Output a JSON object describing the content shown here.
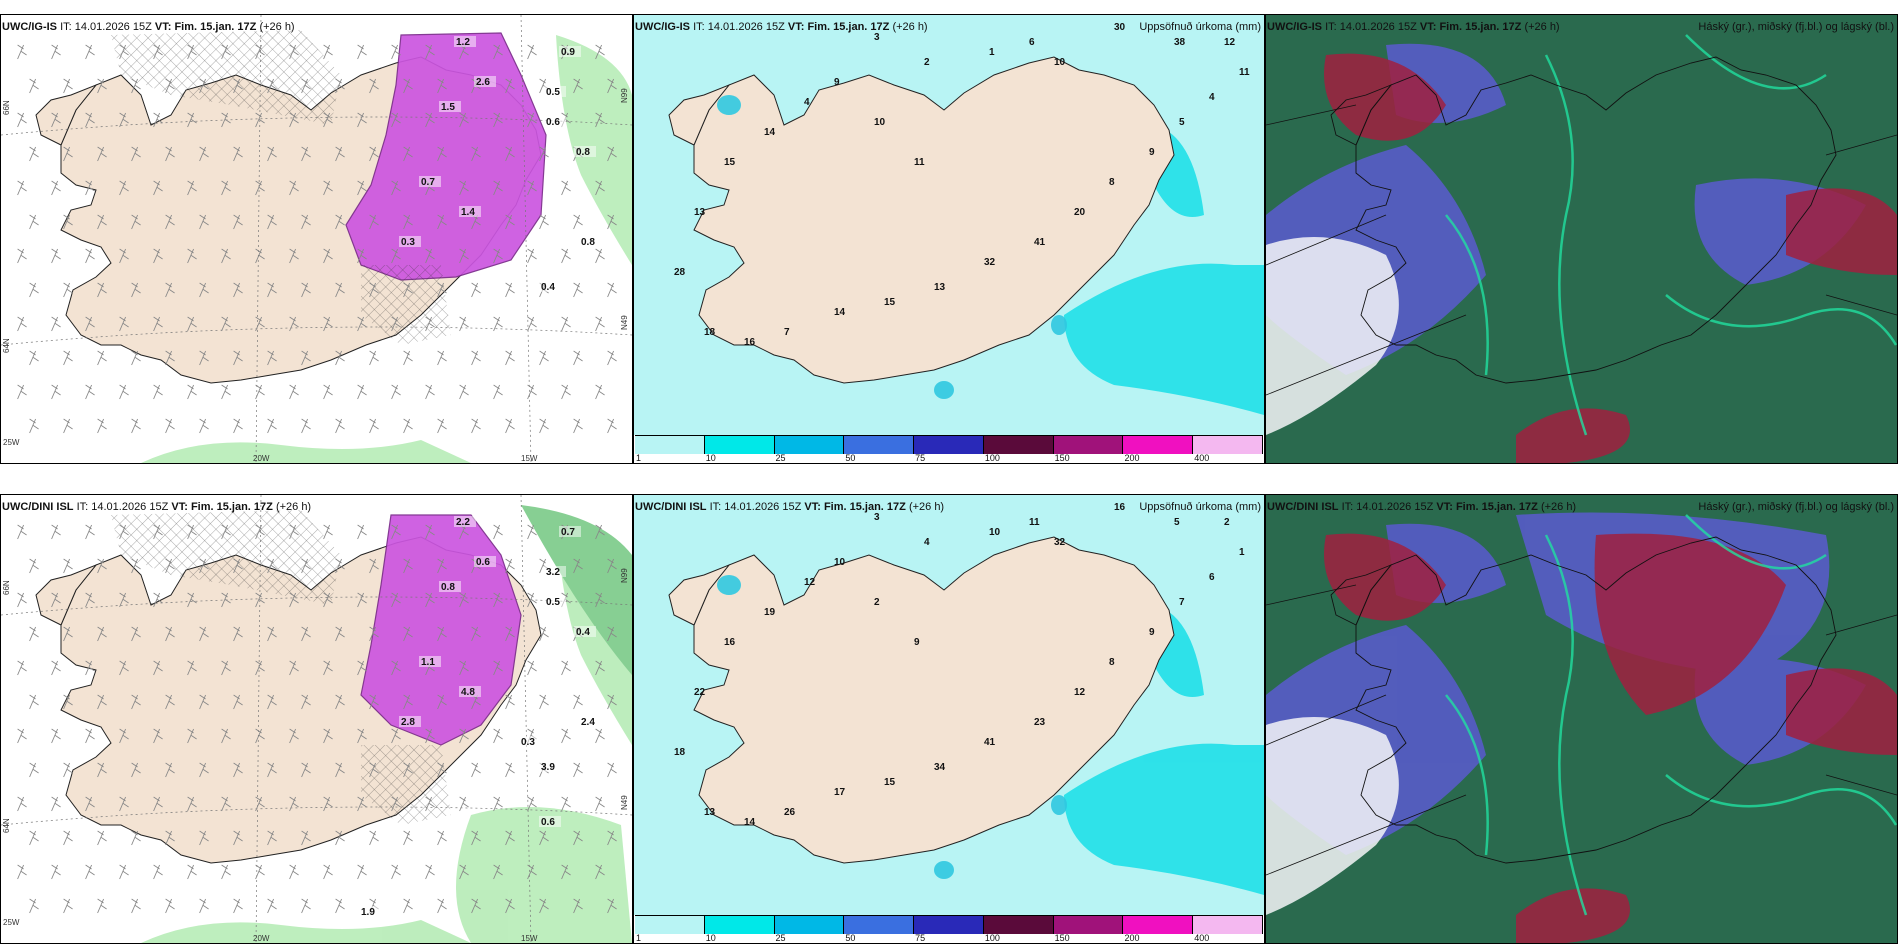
{
  "panels": [
    {
      "model": "UWC/IG-IS",
      "it_label": "IT:",
      "it_value": "14.01.2026 15Z",
      "vt_label": "VT:",
      "vt_value": "Fim. 15.jan. 17Z",
      "lead": "(+26 h)",
      "right_title": "",
      "kind": "precip-type",
      "lat_labels": [
        "66N",
        "64N",
        "N99",
        "N49"
      ],
      "lon_labels": [
        "25W",
        "20W",
        "15W"
      ],
      "value_labels": [
        "1.2",
        "0.9",
        "2.6",
        "1.5",
        "0.5",
        "0.6",
        "0.8",
        "0.7",
        "1.4",
        "0.3",
        "0.4",
        "0.8"
      ]
    },
    {
      "model": "UWC/IG-IS",
      "it_label": "IT:",
      "it_value": "14.01.2026 15Z",
      "vt_label": "VT:",
      "vt_value": "Fim. 15.jan. 17Z",
      "lead": "(+26 h)",
      "right_title": "Uppsöfnuð úrkoma (mm)",
      "kind": "accum",
      "value_labels": [
        "3",
        "2",
        "1",
        "6",
        "10",
        "30",
        "38",
        "12",
        "11",
        "4",
        "5",
        "9",
        "8",
        "20",
        "41",
        "32",
        "13",
        "15",
        "14",
        "7",
        "16",
        "18",
        "28",
        "13",
        "15",
        "14",
        "4",
        "9",
        "10",
        "11"
      ]
    },
    {
      "model": "UWC/IG-IS",
      "it_label": "IT:",
      "it_value": "14.01.2026 15Z",
      "vt_label": "VT:",
      "vt_value": "Fim. 15.jan. 17Z",
      "lead": "(+26 h)",
      "right_title": "Háský (gr.), miðský (fj.bl.) og lágský (bl.)",
      "kind": "clouds"
    },
    {
      "model": "UWC/DINI ISL",
      "it_label": "IT:",
      "it_value": "14.01.2026 15Z",
      "vt_label": "VT:",
      "vt_value": "Fim. 15.jan. 17Z",
      "lead": "(+26 h)",
      "right_title": "",
      "kind": "precip-type",
      "lat_labels": [
        "66N",
        "64N",
        "N99",
        "N49"
      ],
      "lon_labels": [
        "25W",
        "20W",
        "15W"
      ],
      "value_labels": [
        "2.2",
        "0.7",
        "0.6",
        "0.8",
        "3.2",
        "0.5",
        "0.4",
        "1.1",
        "4.8",
        "2.8",
        "3.9",
        "2.4",
        "0.3",
        "0.6",
        "1.9"
      ]
    },
    {
      "model": "UWC/DINI ISL",
      "it_label": "IT:",
      "it_value": "14.01.2026 15Z",
      "vt_label": "VT:",
      "vt_value": "Fim. 15.jan. 17Z",
      "lead": "(+26 h)",
      "right_title": "Uppsöfnuð úrkoma (mm)",
      "kind": "accum",
      "value_labels": [
        "3",
        "4",
        "10",
        "11",
        "32",
        "16",
        "5",
        "2",
        "1",
        "6",
        "7",
        "9",
        "8",
        "12",
        "23",
        "41",
        "34",
        "15",
        "17",
        "26",
        "14",
        "13",
        "18",
        "22",
        "16",
        "19",
        "12",
        "10",
        "2",
        "9"
      ]
    },
    {
      "model": "UWC/DINI ISL",
      "it_label": "IT:",
      "it_value": "14.01.2026 15Z",
      "vt_label": "VT:",
      "vt_value": "Fim. 15.jan. 17Z",
      "lead": "(+26 h)",
      "right_title": "Háský (gr.), miðský (fj.bl.) og lágský (bl.)",
      "kind": "clouds"
    }
  ],
  "legend": {
    "labels": [
      "1",
      "10",
      "25",
      "50",
      "75",
      "100",
      "150",
      "200",
      "400"
    ],
    "colors": [
      "#b8f4f4",
      "#00e8e8",
      "#00b8e6",
      "#3a6fe0",
      "#2929b8",
      "#5a0a3a",
      "#a0127a",
      "#f010c0",
      "#f4b8f0"
    ]
  },
  "colors": {
    "land": "#f3e3d3",
    "ocean_light": "#b8f4f4",
    "snow_purple": "#cc55e0",
    "rain_green": "#a8e8a8",
    "cloud_green": "#2a6a4e",
    "cloud_blue": "#5a5ad0",
    "cloud_red": "#a02040"
  }
}
